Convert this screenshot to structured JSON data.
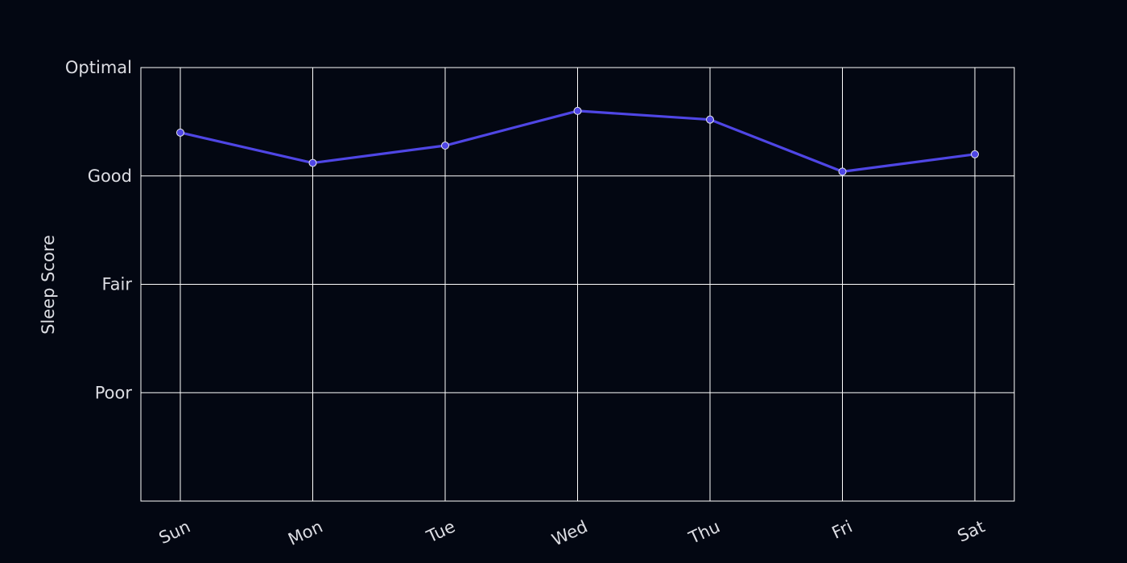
{
  "chart_data": {
    "type": "line",
    "title": "",
    "xlabel": "",
    "ylabel": "Sleep Score",
    "categories": [
      "Sun",
      "Mon",
      "Tue",
      "Wed",
      "Thu",
      "Fri",
      "Sat"
    ],
    "series": [
      {
        "values": [
          3.4,
          3.12,
          3.28,
          3.6,
          3.52,
          3.04,
          3.2
        ]
      }
    ],
    "y_ticks": [
      {
        "value": 1,
        "label": "Poor"
      },
      {
        "value": 2,
        "label": "Fair"
      },
      {
        "value": 3,
        "label": "Good"
      },
      {
        "value": 4,
        "label": "Optimal"
      }
    ],
    "ylim": [
      0,
      4
    ],
    "grid": true,
    "colors": {
      "background": "#030712",
      "line": "#4f46e5",
      "marker_fill": "#4f46e5",
      "marker_edge": "#e5e7eb",
      "grid": "#ffffff",
      "text": "#dcdde3"
    }
  }
}
